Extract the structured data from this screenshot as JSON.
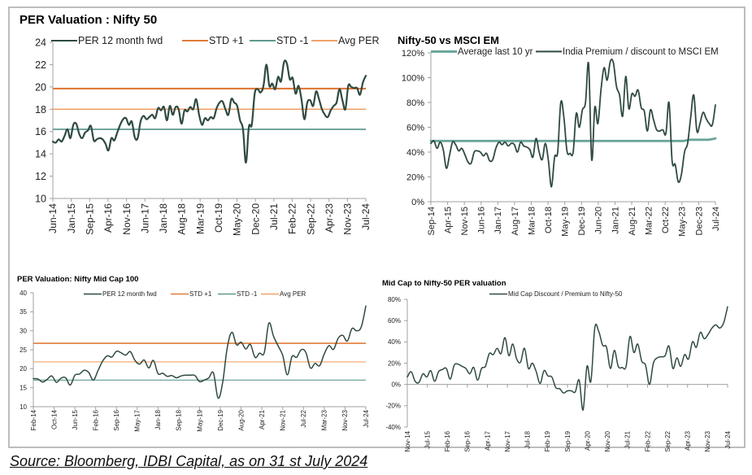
{
  "source_note": "Source: Bloomberg, IDBI Capital, as on 31 st July 2024",
  "colors": {
    "per_line": "#2f4a41",
    "std_plus": "#e07b39",
    "std_minus": "#5f9a90",
    "avg_per": "#f0a26a",
    "avg10": "#6aa59a",
    "axis": "#a0a0a0"
  },
  "chart_data": [
    {
      "id": "nifty50-per",
      "type": "line",
      "title": "PER Valuation : Nifty 50",
      "xlabel": "",
      "ylabel": "",
      "ylim": [
        10,
        24
      ],
      "yticks": [
        10,
        12,
        14,
        16,
        18,
        20,
        22,
        24
      ],
      "ytick_format": "num",
      "xtick_labels": [
        "Jun-14",
        "Jan-15",
        "Sep-15",
        "Apr-16",
        "Nov-16",
        "Jun-17",
        "Jan-18",
        "Aug-18",
        "Mar-19",
        "Oct-19",
        "May-20",
        "Dec-20",
        "Jul-21",
        "Feb-22",
        "Sep-22",
        "Apr-23",
        "Nov-23",
        "Jul-24"
      ],
      "legend": [
        "PER 12 month fwd",
        "STD +1",
        "STD -1",
        "Avg PER"
      ],
      "legend_position": "top",
      "grid": false,
      "series": [
        {
          "name": "PER 12 month fwd",
          "kind": "line",
          "values": [
            15.1,
            15.0,
            15.3,
            15.1,
            15.6,
            16.2,
            15.4,
            16.6,
            16.7,
            15.8,
            15.4,
            15.9,
            16.1,
            16.5,
            15.2,
            15.3,
            15.4,
            15.3,
            14.9,
            14.3,
            15.4,
            15.2,
            15.9,
            16.6,
            17.1,
            17.2,
            16.6,
            16.9,
            15.5,
            15.4,
            16.9,
            17.4,
            17.1,
            17.3,
            17.5,
            17.2,
            18.1,
            17.9,
            18.2,
            17.0,
            18.3,
            17.5,
            18.2,
            18.0,
            16.7,
            17.9,
            17.8,
            18.2,
            18.0,
            18.9,
            17.5,
            16.6,
            17.2,
            17.0,
            17.3,
            17.2,
            18.1,
            18.6,
            18.7,
            18.0,
            17.5,
            18.9,
            18.6,
            18.3,
            17.0,
            16.2,
            13.2,
            16.4,
            16.6,
            19.4,
            19.8,
            19.5,
            20.1,
            22.0,
            20.1,
            20.3,
            19.8,
            20.9,
            20.5,
            22.2,
            22.1,
            20.7,
            20.8,
            19.4,
            20.1,
            18.9,
            17.1,
            18.6,
            18.8,
            18.3,
            19.6,
            18.9,
            18.0,
            17.5,
            17.3,
            17.9,
            18.3,
            18.6,
            19.8,
            18.8,
            18.0,
            20.1,
            20.0,
            19.9,
            19.9,
            19.3,
            20.4,
            21.0
          ]
        },
        {
          "name": "STD +1",
          "kind": "hline",
          "value": 19.85
        },
        {
          "name": "Avg PER",
          "kind": "hline",
          "value": 18.0
        },
        {
          "name": "STD -1",
          "kind": "hline",
          "value": 16.2
        }
      ]
    },
    {
      "id": "nifty-vs-msci",
      "type": "line",
      "title": "Nifty-50 vs MSCI EM",
      "xlabel": "",
      "ylabel": "",
      "ylim": [
        0,
        120
      ],
      "yticks": [
        0,
        20,
        40,
        60,
        80,
        100,
        120
      ],
      "ytick_format": "pct",
      "xtick_labels": [
        "Sep-14",
        "Apr-15",
        "Nov-15",
        "Jun-16",
        "Jan-17",
        "Aug-17",
        "Mar-18",
        "Oct-18",
        "May-19",
        "Dec-19",
        "Jun-20",
        "Jan-21",
        "Aug-21",
        "Mar-22",
        "Oct-22",
        "May-23",
        "Dec-23",
        "Jul-24"
      ],
      "legend": [
        "Average last 10 yr",
        "India Premium / discount to MSCI EM"
      ],
      "legend_position": "top",
      "grid": false,
      "series": [
        {
          "name": "Average last 10 yr",
          "kind": "line",
          "values": [
            49,
            49,
            49,
            49,
            49,
            49,
            49,
            49,
            49,
            49,
            49,
            49,
            49,
            49,
            49,
            49,
            49,
            49,
            49,
            49,
            49,
            49,
            49,
            49,
            49,
            49,
            49,
            49,
            49,
            49,
            49,
            49,
            49,
            49,
            49,
            49,
            49,
            49,
            49,
            49,
            49,
            50,
            50,
            50,
            50,
            51
          ]
        },
        {
          "name": "India Premium / discount to MSCI EM",
          "kind": "line",
          "values": [
            47,
            49,
            43,
            48,
            42,
            27,
            37,
            48,
            46,
            41,
            43,
            38,
            32,
            31,
            40,
            41,
            40,
            37,
            39,
            33,
            34,
            43,
            48,
            46,
            48,
            45,
            47,
            46,
            40,
            48,
            45,
            44,
            42,
            36,
            51,
            40,
            34,
            47,
            33,
            12,
            36,
            40,
            80,
            68,
            41,
            39,
            40,
            71,
            60,
            74,
            80,
            111,
            34,
            76,
            63,
            90,
            108,
            98,
            113,
            112,
            93,
            86,
            69,
            101,
            75,
            87,
            85,
            90,
            76,
            73,
            57,
            74,
            66,
            58,
            57,
            58,
            55,
            80,
            33,
            30,
            16,
            22,
            40,
            47,
            68,
            86,
            57,
            63,
            72,
            67,
            63,
            62,
            78
          ]
        }
      ]
    },
    {
      "id": "midcap-per",
      "type": "line",
      "title": "PER Valuation: Nifty Mid Cap 100",
      "xlabel": "",
      "ylabel": "",
      "ylim": [
        10,
        40
      ],
      "yticks": [
        10,
        15,
        20,
        25,
        30,
        35,
        40
      ],
      "ytick_format": "num",
      "xtick_labels": [
        "Feb-14",
        "Oct-14",
        "Jun-15",
        "Feb-16",
        "Sep-16",
        "May-17",
        "Jan-18",
        "Sep-18",
        "May-19",
        "Dec-19",
        "Aug-20",
        "Apr-21",
        "Nov-21",
        "Jul-22",
        "Mar-23",
        "Nov-23",
        "Jul-24"
      ],
      "legend": [
        "PER 12 month fwd",
        "STD +1",
        "STD -1",
        "Avg PER"
      ],
      "legend_position": "top",
      "grid": false,
      "series": [
        {
          "name": "PER 12 month fwd",
          "kind": "line",
          "values": [
            17.4,
            17.3,
            16.5,
            17.2,
            18.1,
            16.4,
            17.5,
            17.6,
            15.7,
            18.3,
            18.6,
            19.6,
            19.0,
            17.0,
            19.5,
            22.0,
            23.4,
            23.1,
            24.6,
            24.2,
            23.6,
            24.5,
            22.2,
            21.2,
            22.3,
            20.2,
            22.2,
            18.7,
            18.8,
            18.0,
            18.2,
            17.6,
            18.1,
            18.3,
            18.3,
            18.2,
            16.6,
            17.0,
            17.6,
            18.9,
            12.3,
            16.4,
            25.6,
            29.6,
            26.3,
            27.0,
            25.2,
            26.4,
            23.0,
            24.1,
            24.2,
            32.0,
            28.6,
            26.0,
            23.5,
            18.4,
            23.2,
            23.0,
            25.0,
            24.3,
            20.2,
            21.4,
            20.8,
            23.9,
            26.1,
            25.1,
            28.0,
            28.8,
            27.3,
            30.6,
            30.0,
            31.0,
            36.5
          ]
        },
        {
          "name": "STD +1",
          "kind": "hline",
          "value": 26.7
        },
        {
          "name": "Avg PER",
          "kind": "hline",
          "value": 21.8
        },
        {
          "name": "STD -1",
          "kind": "hline",
          "value": 17.0
        }
      ]
    },
    {
      "id": "midcap-vs-nifty",
      "type": "line",
      "title": "Mid Cap to Nifty-50 PER valuation",
      "xlabel": "",
      "ylabel": "",
      "ylim": [
        -40,
        80
      ],
      "yticks": [
        -40,
        -20,
        0,
        20,
        40,
        60,
        80
      ],
      "ytick_format": "pct",
      "xtick_labels": [
        "Nov-14",
        "Jul-15",
        "Feb-16",
        "Sep-16",
        "Apr-17",
        "Nov-17",
        "Jul-18",
        "Feb-19",
        "Sep-19",
        "Apr-20",
        "Nov-20",
        "Jul-21",
        "Feb-22",
        "Sep-22",
        "Apr-23",
        "Nov-23",
        "Jul-24"
      ],
      "legend": [
        "Mid Cap Discount / Premium to Nifty-50"
      ],
      "legend_position": "top",
      "grid": false,
      "series": [
        {
          "name": "Mid Cap Discount / Premium to Nifty-50",
          "kind": "line",
          "values": [
            7,
            12,
            3,
            2,
            10,
            7,
            13,
            3,
            12,
            14,
            15,
            5,
            18,
            19,
            17,
            15,
            10,
            16,
            4,
            15,
            17,
            29,
            28,
            34,
            29,
            44,
            27,
            38,
            24,
            21,
            34,
            15,
            20,
            12,
            1,
            13,
            8,
            7,
            -3,
            -4,
            -8,
            -6,
            -6,
            -7,
            4,
            -24,
            17,
            3,
            53,
            50,
            37,
            35,
            15,
            32,
            17,
            16,
            17,
            45,
            30,
            38,
            22,
            18,
            0,
            20,
            25,
            26,
            27,
            36,
            15,
            25,
            17,
            28,
            24,
            40,
            35,
            49,
            43,
            47,
            53,
            56,
            53,
            58,
            73
          ]
        }
      ]
    }
  ]
}
